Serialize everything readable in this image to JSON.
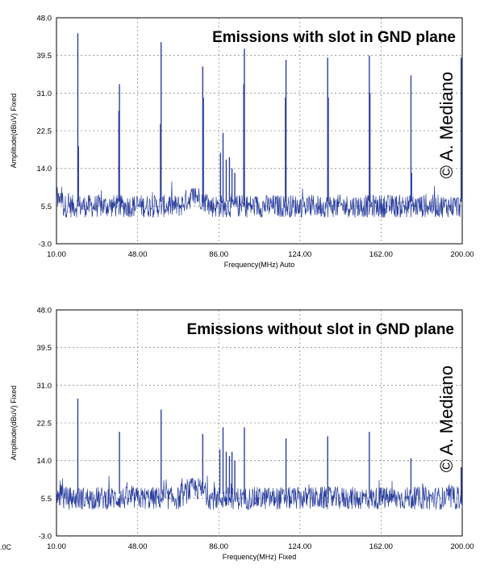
{
  "chart_data": [
    {
      "type": "line",
      "title": "Emissions with slot in GND plane",
      "watermark": "© A. Mediano",
      "xlabel": "Frequency(MHz)  Auto",
      "ylabel": "Amplitude(dBuV)  Fixed",
      "xlim": [
        10,
        200
      ],
      "ylim": [
        -3,
        48
      ],
      "xticks": [
        "10.00",
        "48.00",
        "86.00",
        "124.00",
        "162.00",
        "200.00"
      ],
      "yticks": [
        "48.0",
        "39.5",
        "31.0",
        "22.5",
        "14.0",
        "5.5",
        "-3.0"
      ],
      "noise_floor_db": 5.5,
      "line_color": "#2b3f9e",
      "spikes": [
        {
          "f": 20,
          "db": 44.5
        },
        {
          "f": 20.3,
          "db": 19
        },
        {
          "f": 39.5,
          "db": 33
        },
        {
          "f": 39.2,
          "db": 27
        },
        {
          "f": 59,
          "db": 42.5
        },
        {
          "f": 58.7,
          "db": 24
        },
        {
          "f": 78.5,
          "db": 37
        },
        {
          "f": 78.8,
          "db": 30
        },
        {
          "f": 88,
          "db": 22
        },
        {
          "f": 86.8,
          "db": 17.5
        },
        {
          "f": 89.5,
          "db": 16
        },
        {
          "f": 91,
          "db": 16.5
        },
        {
          "f": 92.2,
          "db": 14
        },
        {
          "f": 93.5,
          "db": 13
        },
        {
          "f": 98,
          "db": 41
        },
        {
          "f": 97.7,
          "db": 33
        },
        {
          "f": 117.5,
          "db": 38.5
        },
        {
          "f": 117.2,
          "db": 30
        },
        {
          "f": 137,
          "db": 39
        },
        {
          "f": 137.3,
          "db": 30
        },
        {
          "f": 156.5,
          "db": 39.5
        },
        {
          "f": 156.8,
          "db": 31
        },
        {
          "f": 176,
          "db": 35
        },
        {
          "f": 176.3,
          "db": 13
        },
        {
          "f": 199.5,
          "db": 39
        }
      ]
    },
    {
      "type": "line",
      "title": "Emissions without slot in GND plane",
      "watermark": "© A. Mediano",
      "xlabel": "Frequency(MHz)  Fixed",
      "ylabel": "Amplitude(dBuV)  Fixed",
      "xlim": [
        10,
        200
      ],
      "ylim": [
        -3,
        48
      ],
      "xticks": [
        "10.00",
        "48.00",
        "86.00",
        "124.00",
        "162.00",
        "200.00"
      ],
      "yticks": [
        "48.0",
        "39.5",
        "31.0",
        "22.5",
        "14.0",
        "5.5",
        "-3.0"
      ],
      "noise_floor_db": 5.5,
      "line_color": "#2b3f9e",
      "spikes": [
        {
          "f": 20,
          "db": 28
        },
        {
          "f": 39.5,
          "db": 20.5
        },
        {
          "f": 59,
          "db": 25.5
        },
        {
          "f": 78.5,
          "db": 20
        },
        {
          "f": 86.5,
          "db": 16.5
        },
        {
          "f": 88,
          "db": 21.5
        },
        {
          "f": 89.5,
          "db": 16
        },
        {
          "f": 91,
          "db": 15
        },
        {
          "f": 92.2,
          "db": 16
        },
        {
          "f": 93.5,
          "db": 14
        },
        {
          "f": 98,
          "db": 21.5
        },
        {
          "f": 117.5,
          "db": 19
        },
        {
          "f": 137,
          "db": 19.5
        },
        {
          "f": 156.5,
          "db": 20.5
        },
        {
          "f": 176,
          "db": 14.5
        },
        {
          "f": 199.5,
          "db": 12.5
        }
      ]
    }
  ],
  "stray_label": ".0C"
}
